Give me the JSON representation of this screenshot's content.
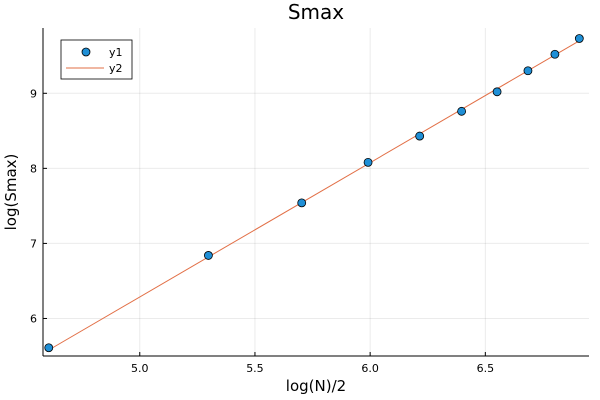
{
  "chart_data": {
    "type": "scatter",
    "title": "Smax",
    "xlabel": "log(N)/2",
    "ylabel": "log(Smax)",
    "xlim": [
      4.58,
      6.95
    ],
    "ylim": [
      5.5,
      9.87
    ],
    "xticks": [
      5.0,
      5.5,
      6.0,
      6.5
    ],
    "xtick_labels": [
      "5.0",
      "5.5",
      "6.0",
      "6.5"
    ],
    "yticks": [
      6,
      7,
      8,
      9
    ],
    "ytick_labels": [
      "6",
      "7",
      "8",
      "9"
    ],
    "grid": true,
    "legend_position": "top-left",
    "series": [
      {
        "name": "y1",
        "kind": "scatter",
        "color": "#1f8fd6",
        "x": [
          4.605,
          5.298,
          5.703,
          5.991,
          6.215,
          6.397,
          6.551,
          6.685,
          6.802,
          6.908
        ],
        "y": [
          5.61,
          6.84,
          7.54,
          8.08,
          8.43,
          8.76,
          9.02,
          9.3,
          9.52,
          9.73
        ]
      },
      {
        "name": "y2",
        "kind": "line",
        "color": "#e26f46",
        "x": [
          4.605,
          6.908
        ],
        "y": [
          5.58,
          9.7
        ]
      }
    ]
  }
}
